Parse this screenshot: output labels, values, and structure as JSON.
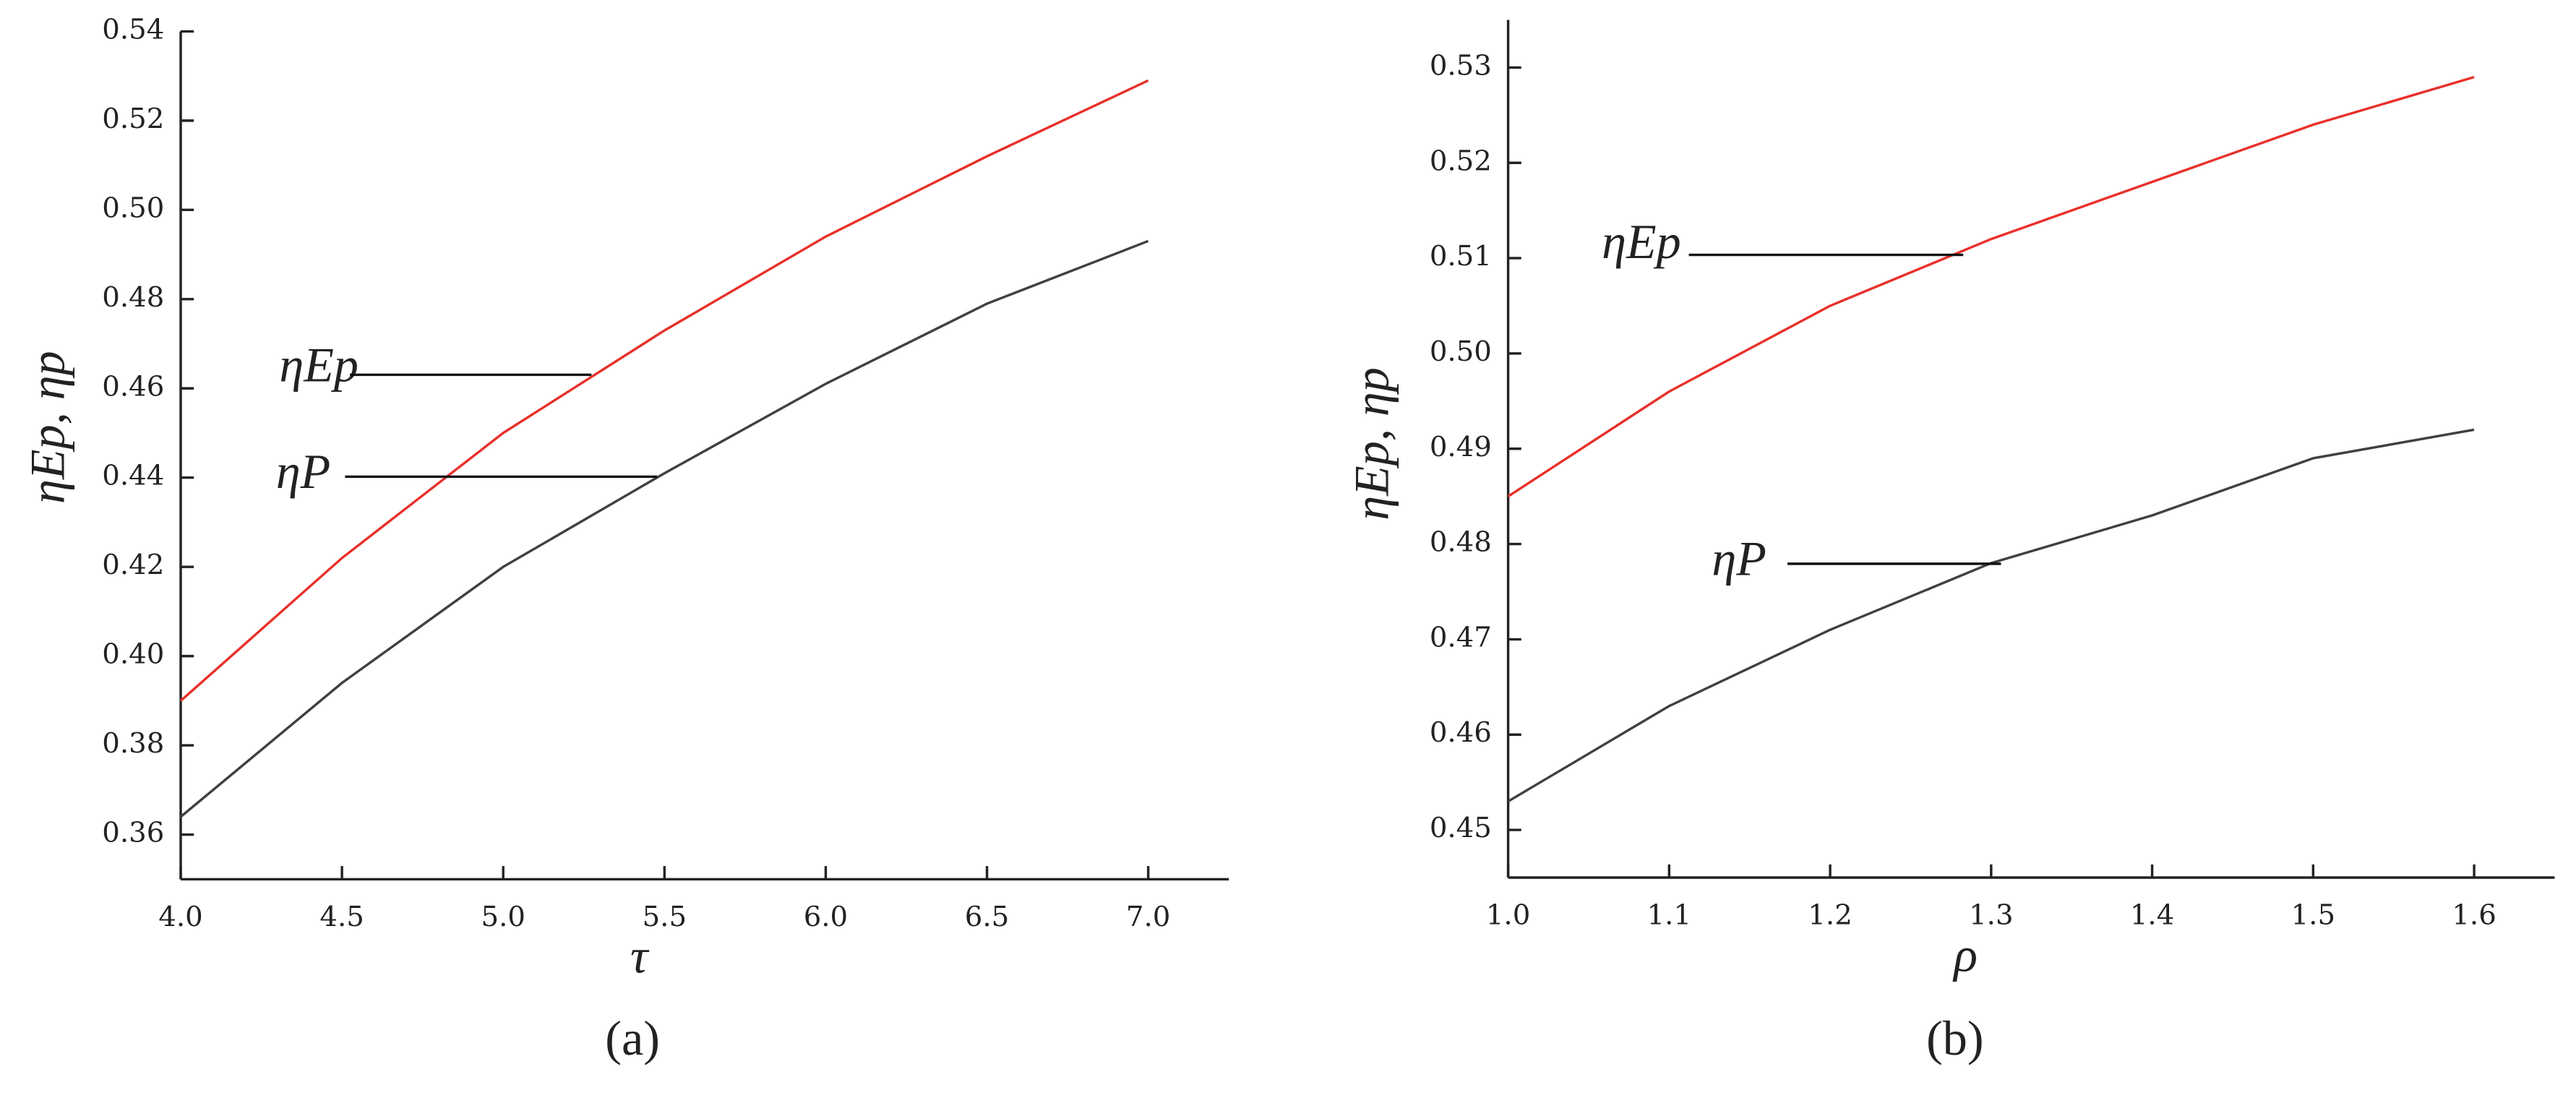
{
  "chart_data": [
    {
      "type": "line",
      "caption": "(a)",
      "xlabel": "τ",
      "ylabel": "ηEp, ηp",
      "x": [
        4.0,
        4.5,
        5.0,
        5.5,
        6.0,
        6.5,
        7.0
      ],
      "series": [
        {
          "name": "ηEp",
          "color": "#e8302a",
          "values": [
            0.39,
            0.422,
            0.45,
            0.473,
            0.494,
            0.512,
            0.529
          ]
        },
        {
          "name": "ηP",
          "color": "#404040",
          "values": [
            0.364,
            0.394,
            0.42,
            0.441,
            0.461,
            0.479,
            0.493
          ]
        }
      ],
      "xlim": [
        4.0,
        7.25
      ],
      "xticks": [
        {
          "value": 4,
          "label": "4.0"
        },
        4.5,
        {
          "value": 5,
          "label": "5.0"
        },
        5.5,
        {
          "value": 6,
          "label": "6.0"
        },
        6.5,
        {
          "value": 7,
          "label": "7.0"
        }
      ],
      "ylim": [
        0.35,
        0.54
      ],
      "yticks": [
        0.36,
        0.38,
        {
          "value": 0.4,
          "label": "0.40"
        },
        0.42,
        0.44,
        0.46,
        0.48,
        {
          "value": 0.5,
          "label": "0.50"
        },
        0.52,
        0.54
      ],
      "grid": false
    },
    {
      "type": "line",
      "caption": "(b)",
      "xlabel": "ρ",
      "ylabel": "ηEp, ηp",
      "x": [
        1.0,
        1.1,
        1.2,
        1.3,
        1.4,
        1.5,
        1.6
      ],
      "series": [
        {
          "name": "ηEp",
          "color": "#e8302a",
          "values": [
            0.485,
            0.496,
            0.505,
            0.512,
            0.518,
            0.524,
            0.529
          ]
        },
        {
          "name": "ηP",
          "color": "#404040",
          "values": [
            0.453,
            0.463,
            0.471,
            0.478,
            0.483,
            0.489,
            0.492
          ]
        }
      ],
      "xlim": [
        1.0,
        1.65
      ],
      "xticks": [
        {
          "value": 1,
          "label": "1.0"
        },
        1.1,
        1.2,
        1.3,
        1.4,
        1.5,
        1.6
      ],
      "ylim": [
        0.445,
        0.535
      ],
      "yticks": [
        0.45,
        0.46,
        0.47,
        0.48,
        0.49,
        {
          "value": 0.5,
          "label": "0.50"
        },
        0.51,
        0.52,
        0.53
      ],
      "grid": false
    }
  ]
}
